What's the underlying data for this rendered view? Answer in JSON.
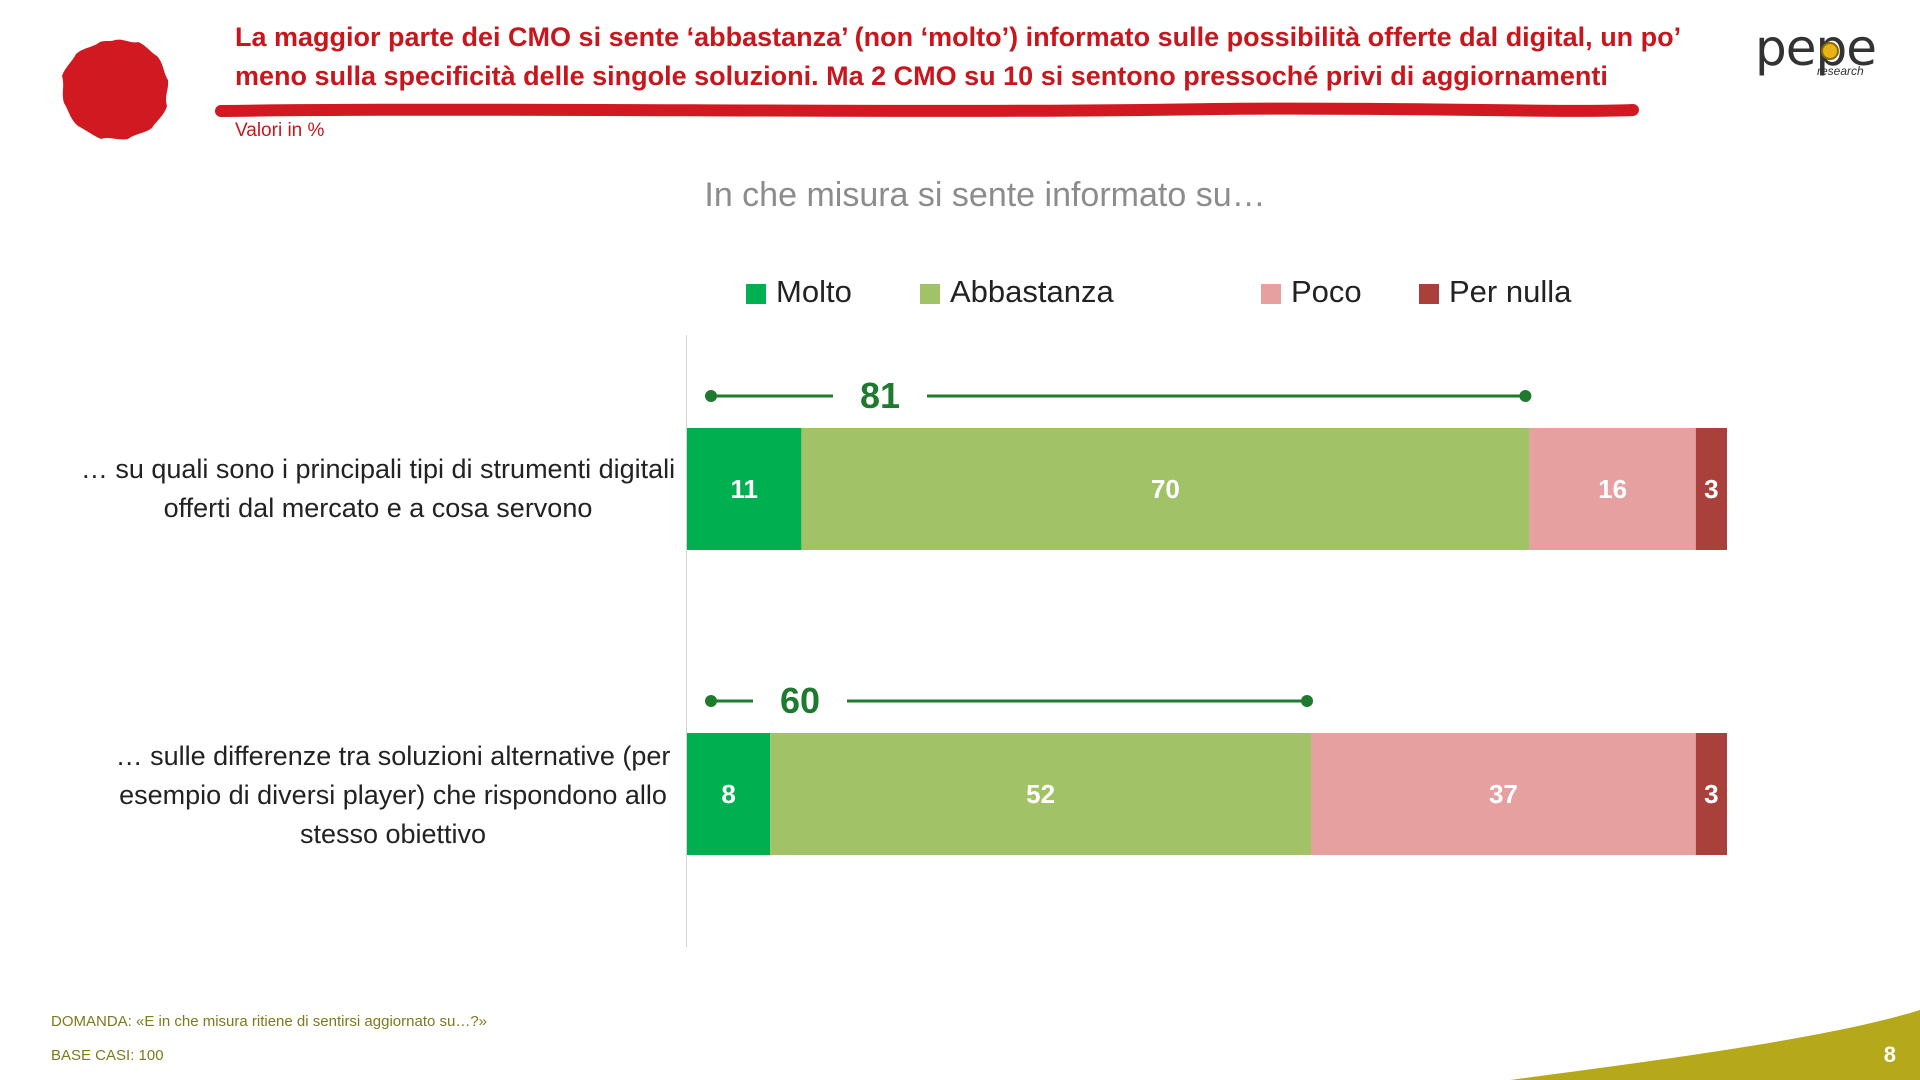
{
  "header": {
    "headline": "La maggior parte dei CMO si sente ‘abbastanza’ (non ‘molto’) informato sulle possibilità offerte dal digital, un po’ meno sulla specificità delle singole soluzioni. Ma 2 CMO su 10 si sentono pressoché privi di aggiornamenti",
    "units_note": "Valori in %"
  },
  "logo": {
    "text": "pepe",
    "sub": "research"
  },
  "colors": {
    "accent_red": "#c8161d",
    "molto": "#00b050",
    "abbastanza": "#a2c267",
    "poco": "#e6a0a0",
    "per_nulla": "#a9403c",
    "bracket": "#1e7a2e",
    "footer_olive": "#b5a81a"
  },
  "chart_data": {
    "type": "bar",
    "orientation": "horizontal",
    "stacked": true,
    "title": "In che misura si sente informato su…",
    "categories": [
      "… su quali sono i principali tipi di strumenti digitali offerti dal mercato e a cosa servono",
      "… sulle differenze tra soluzioni alternative (per esempio di diversi player) che rispondono allo stesso obiettivo"
    ],
    "series": [
      {
        "name": "Molto",
        "values": [
          11,
          8
        ]
      },
      {
        "name": "Abbastanza",
        "values": [
          70,
          52
        ]
      },
      {
        "name": "Poco",
        "values": [
          16,
          37
        ]
      },
      {
        "name": "Per nulla",
        "values": [
          3,
          3
        ]
      }
    ],
    "annotations": [
      {
        "label": "81",
        "spans": [
          "Molto",
          "Abbastanza"
        ]
      },
      {
        "label": "60",
        "spans": [
          "Molto",
          "Abbastanza"
        ]
      }
    ],
    "xlim": [
      0,
      100
    ],
    "legend": "top"
  },
  "footer": {
    "question": "DOMANDA: «E in che misura ritiene di sentirsi aggiornato su…?»",
    "base": "BASE CASI: 100",
    "page": "8"
  }
}
